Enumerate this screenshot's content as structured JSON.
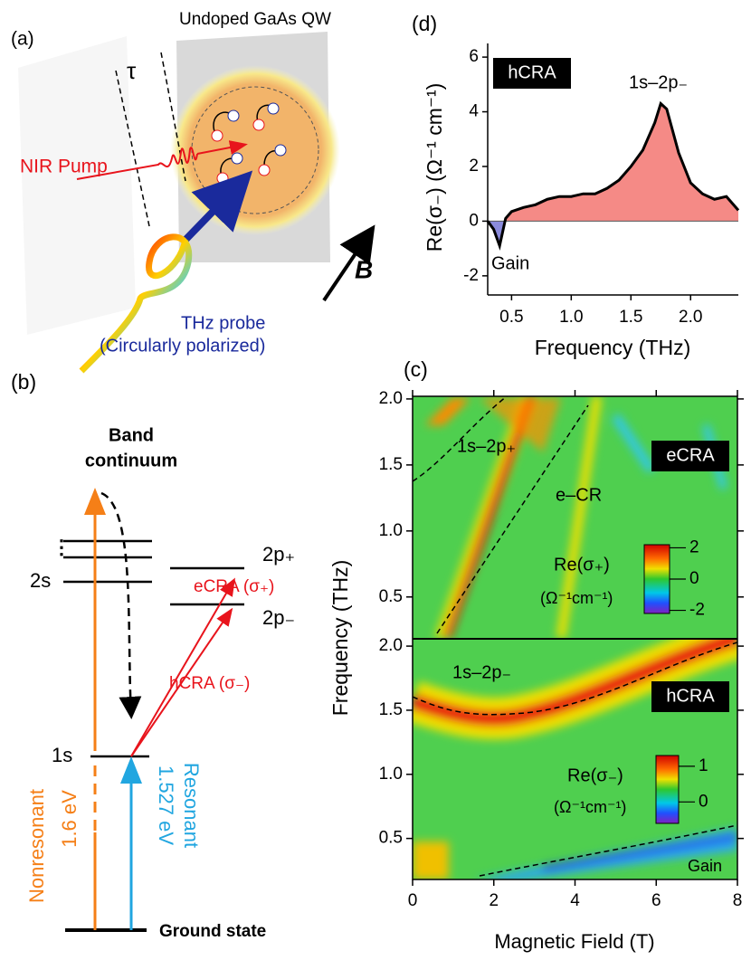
{
  "panel_a": {
    "label": "(a)",
    "sample": "Undoped GaAs QW",
    "delay": "τ",
    "pump": "NIR Pump",
    "field": "B",
    "probe": "THz probe",
    "probe_note": "(Circularly polarized)"
  },
  "panel_b": {
    "label": "(b)",
    "continuum_1": "Band",
    "continuum_2": "continuum",
    "dots": "⋮",
    "level_2s": "2s",
    "level_1s": "1s",
    "level_2p_plus": "2p₊",
    "level_2p_minus": "2p₋",
    "ecra": "eCRA (σ₊)",
    "hcra": "hCRA (σ₋)",
    "nonresonant": "Nonresonant",
    "nonresonant_energy": "1.6 eV",
    "resonant": "Resonant",
    "resonant_energy": "1.527 eV",
    "ground": "Ground state"
  },
  "panel_c": {
    "label": "(c)",
    "x_label": "Magnetic Field (T)",
    "y_label": "Frequency (THz)",
    "xlim": [
      0,
      8
    ],
    "xticks": [
      0,
      2,
      4,
      6,
      8
    ],
    "top": {
      "title": "eCRA",
      "ylim": [
        0.19,
        2.02
      ],
      "yticks": [
        {
          "value": 0.5,
          "label": "0.5"
        },
        {
          "value": 1.0,
          "label": "1.0"
        },
        {
          "value": 1.5,
          "label": "1.5"
        },
        {
          "value": 2.0,
          "label": "2.0"
        }
      ],
      "annotation_1": "1s–2p₊",
      "annotation_2": "e–CR",
      "colorbar_label": "Re(σ₊)",
      "colorbar_unit": "(Ω⁻¹cm⁻¹)",
      "colorbar_lim": [
        -2.2,
        2.2
      ],
      "colorbar_ticks": [
        2,
        0,
        -2
      ]
    },
    "bottom": {
      "title": "hCRA",
      "ylim": [
        0.18,
        2.05
      ],
      "yticks": [
        {
          "value": 0.5,
          "label": "0.5"
        },
        {
          "value": 1.0,
          "label": "1.0"
        },
        {
          "value": 1.5,
          "label": "1.5"
        },
        {
          "value": 2.0,
          "label": "2.0"
        }
      ],
      "annotation_1": "1s–2p₋",
      "annotation_2": "Gain",
      "colorbar_label": "Re(σ₋)",
      "colorbar_unit": "(Ω⁻¹cm⁻¹)",
      "colorbar_lim": [
        -0.6,
        1.3
      ],
      "colorbar_ticks": [
        1,
        0
      ]
    }
  },
  "chart_data": {
    "type": "area",
    "panel_label": "(d)",
    "title": "hCRA",
    "annotation": "1s–2p₋",
    "gain_label": "Gain",
    "x_label": "Frequency (THz)",
    "y_label": "Re(σ₋)  (Ω⁻¹ cm⁻¹)",
    "x": [
      0.3,
      0.35,
      0.4,
      0.45,
      0.5,
      0.6,
      0.7,
      0.8,
      0.9,
      1.0,
      1.1,
      1.2,
      1.3,
      1.4,
      1.5,
      1.6,
      1.7,
      1.75,
      1.8,
      1.9,
      2.0,
      2.1,
      2.2,
      2.3,
      2.4
    ],
    "values": [
      0,
      -0.3,
      -0.9,
      0.1,
      0.35,
      0.5,
      0.6,
      0.8,
      0.9,
      0.9,
      1.0,
      1.0,
      1.2,
      1.5,
      2.0,
      2.6,
      3.6,
      4.3,
      4.1,
      2.5,
      1.4,
      1.0,
      0.8,
      0.9,
      0.4
    ],
    "positive_color": "#f58a86",
    "negative_color": "#8b8bdc",
    "xlim": [
      0.3,
      2.4
    ],
    "ylim": [
      -2.7,
      6.5
    ],
    "xticks": [
      {
        "value": 0.5,
        "label": "0.5"
      },
      {
        "value": 1.0,
        "label": "1.0"
      },
      {
        "value": 1.5,
        "label": "1.5"
      },
      {
        "value": 2.0,
        "label": "2.0"
      }
    ],
    "yticks": [
      -2,
      0,
      2,
      4,
      6
    ]
  }
}
